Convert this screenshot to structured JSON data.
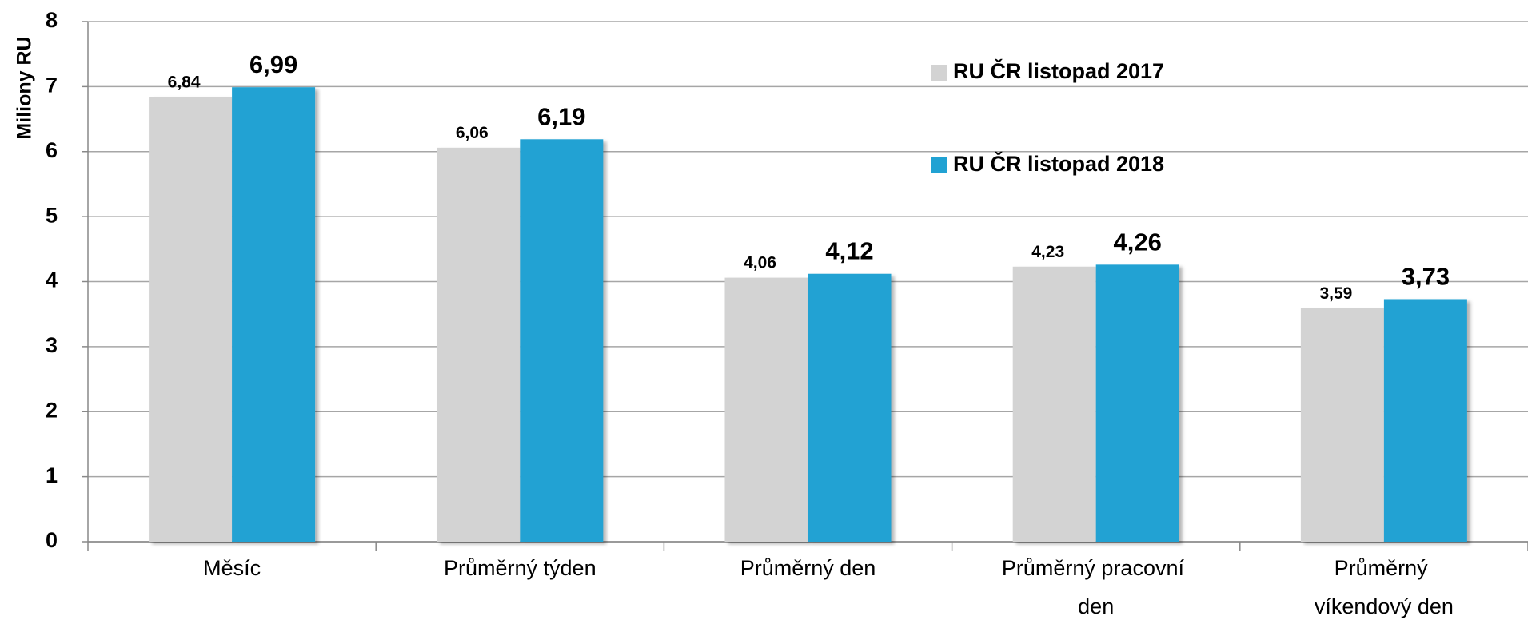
{
  "chart_data": {
    "type": "bar",
    "y_label": "Miliony RU",
    "categories": [
      "Měsíc",
      "Průměrný týden",
      "Průměrný den",
      "Průměrný pracovní den",
      "Průměrný víkendový den"
    ],
    "series": [
      {
        "name": "RU ČR listopad 2017",
        "color": "#d3d3d3",
        "values": [
          6.84,
          6.06,
          4.06,
          4.23,
          3.59
        ],
        "value_labels": [
          "6,84",
          "6,06",
          "4,06",
          "4,23",
          "3,59"
        ]
      },
      {
        "name": "RU ČR listopad 2018",
        "color": "#21a2d3",
        "values": [
          6.99,
          6.19,
          4.12,
          4.26,
          3.73
        ],
        "value_labels": [
          "6,99",
          "6,19",
          "4,12",
          "4,26",
          "3,73"
        ]
      }
    ],
    "ylim": [
      0,
      8
    ],
    "yticks": [
      0,
      1,
      2,
      3,
      4,
      5,
      6,
      7,
      8
    ],
    "grid": true
  }
}
